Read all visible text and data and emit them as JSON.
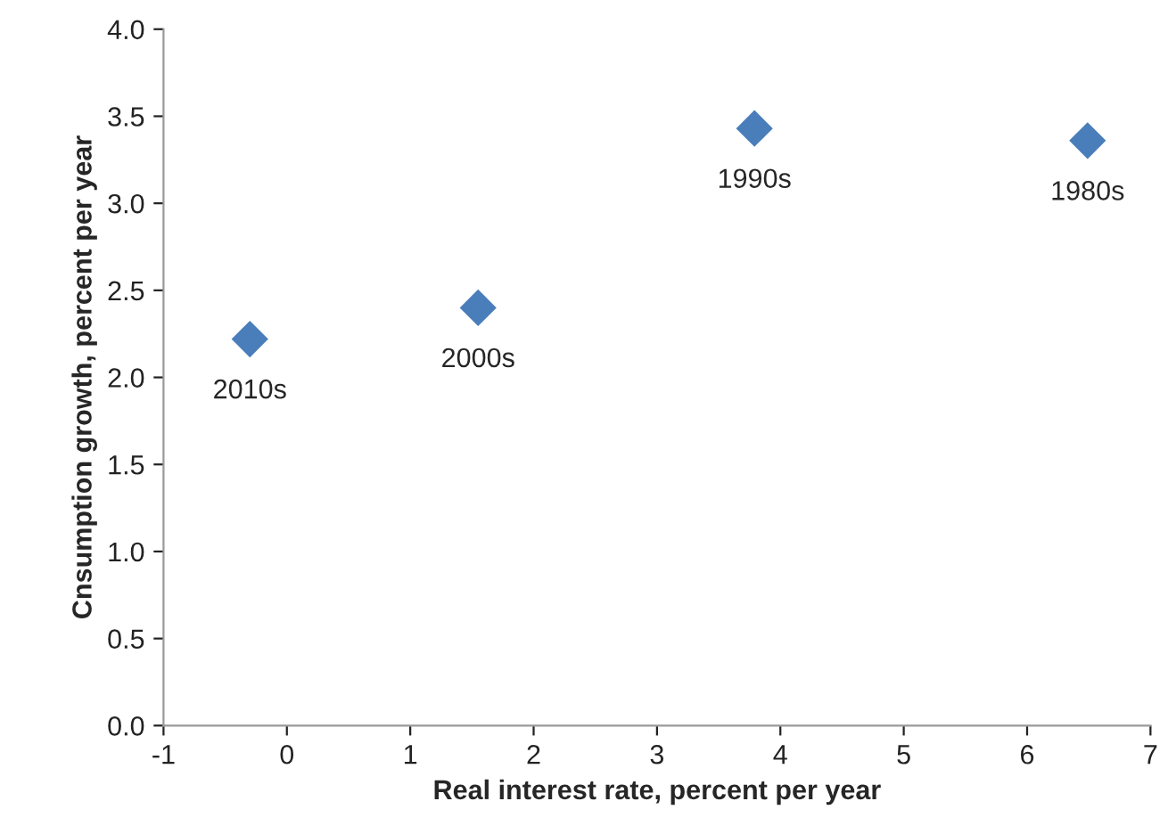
{
  "chart_data": {
    "type": "scatter",
    "xlabel": "Real interest rate, percent per year",
    "ylabel": "Cnsumption growth, percent per year",
    "x": [
      -0.3,
      1.55,
      3.79,
      6.49
    ],
    "series": [
      {
        "color": "#4a7ebb",
        "values": [
          2.22,
          2.4,
          3.43,
          3.36
        ]
      }
    ],
    "annotations": [
      {
        "text": "2010s",
        "x": -0.3,
        "y": 2.22
      },
      {
        "text": "2000s",
        "x": 1.55,
        "y": 2.4
      },
      {
        "text": "1990s",
        "x": 3.79,
        "y": 3.43
      },
      {
        "text": "1980s",
        "x": 6.49,
        "y": 3.36
      }
    ],
    "xlim": [
      -1,
      7
    ],
    "xticks": [
      -1,
      0,
      1,
      2,
      3,
      4,
      5,
      6,
      7
    ],
    "ylim": [
      0,
      4
    ],
    "yticks": [
      {
        "value": 0,
        "label": "0.0"
      },
      {
        "value": 0.5,
        "label": "0.5"
      },
      {
        "value": 1,
        "label": "1.0"
      },
      {
        "value": 1.5,
        "label": "1.5"
      },
      {
        "value": 2,
        "label": "2.0"
      },
      {
        "value": 2.5,
        "label": "2.5"
      },
      {
        "value": 3,
        "label": "3.0"
      },
      {
        "value": 3.5,
        "label": "3.5"
      },
      {
        "value": 4,
        "label": "4.0"
      }
    ],
    "grid": false,
    "legend": false,
    "marker": "diamond"
  }
}
